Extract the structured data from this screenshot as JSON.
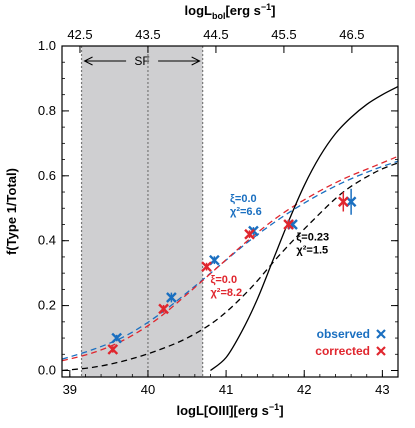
{
  "chart_data": {
    "type": "scatter",
    "xlabel": "logL[OIII][erg s⁻¹]",
    "ylabel": "f(Type 1/Total)",
    "top_xlabel": "logLₕₒₗ[erg s⁻¹]",
    "top_xlabel_parts": {
      "base": "logL",
      "sub": "bol",
      "rest": "[erg s",
      "sup": "−1",
      "end": "]"
    },
    "xlabel_parts": {
      "base": "logL[OIII][erg s",
      "sup": "−1",
      "end": "]"
    },
    "xlim": [
      38.9,
      43.2
    ],
    "ylim": [
      -0.02,
      1.0
    ],
    "x_ticks": [
      "39",
      "40",
      "41",
      "42",
      "43"
    ],
    "x_tick_values": [
      39,
      40,
      41,
      42,
      43
    ],
    "top_ticks": [
      "42.5",
      "43.5",
      "44.5",
      "45.5",
      "46.5"
    ],
    "top_tick_values": [
      39.13,
      40.0,
      40.87,
      41.74,
      42.61
    ],
    "y_ticks": [
      "0.0",
      "0.2",
      "0.4",
      "0.6",
      "0.8",
      "1.0"
    ],
    "y_tick_values": [
      0.0,
      0.2,
      0.4,
      0.6,
      0.8,
      1.0
    ],
    "shaded_region": {
      "label": "SF",
      "x": [
        39.15,
        40.7
      ],
      "divider_x": 40.0
    },
    "series": [
      {
        "name": "observed",
        "color": "#1a6fc0",
        "marker": "x",
        "x": [
          39.6,
          40.3,
          40.85,
          41.35,
          41.85,
          42.6
        ],
        "y": [
          0.1,
          0.225,
          0.34,
          0.43,
          0.45,
          0.52
        ],
        "yerr": [
          0.01,
          0.015,
          0.012,
          0.012,
          0.015,
          0.04
        ]
      },
      {
        "name": "corrected",
        "color": "#e0262e",
        "marker": "x",
        "x": [
          39.55,
          40.2,
          40.75,
          41.3,
          41.8,
          42.5
        ],
        "y": [
          0.065,
          0.19,
          0.32,
          0.42,
          0.45,
          0.52
        ],
        "yerr": [
          0.01,
          0.012,
          0.012,
          0.012,
          0.015,
          0.03
        ]
      }
    ],
    "fits": [
      {
        "color": "#1a6fc0",
        "style": "dashed",
        "x": [
          38.9,
          39.3,
          39.7,
          40.1,
          40.5,
          40.9,
          41.3,
          41.7,
          42.1,
          42.5,
          42.9,
          43.2
        ],
        "y": [
          0.035,
          0.065,
          0.105,
          0.165,
          0.24,
          0.32,
          0.4,
          0.47,
          0.53,
          0.58,
          0.62,
          0.645
        ]
      },
      {
        "color": "#e0262e",
        "style": "dashed",
        "x": [
          38.9,
          39.3,
          39.7,
          40.1,
          40.5,
          40.9,
          41.3,
          41.7,
          42.1,
          42.5,
          42.9,
          43.2
        ],
        "y": [
          0.03,
          0.055,
          0.095,
          0.155,
          0.235,
          0.32,
          0.405,
          0.48,
          0.54,
          0.59,
          0.63,
          0.66
        ]
      },
      {
        "color": "#000000",
        "style": "dashed",
        "x": [
          38.9,
          39.3,
          39.7,
          40.1,
          40.5,
          40.9,
          41.3,
          41.7,
          42.1,
          42.5,
          42.9,
          43.2
        ],
        "y": [
          0.0,
          0.01,
          0.03,
          0.06,
          0.1,
          0.16,
          0.25,
          0.36,
          0.46,
          0.55,
          0.61,
          0.64
        ]
      },
      {
        "color": "#000000",
        "style": "solid",
        "x": [
          40.8,
          41.0,
          41.2,
          41.4,
          41.6,
          41.8,
          42.0,
          42.2,
          42.4,
          42.6,
          42.8,
          43.0,
          43.2
        ],
        "y": [
          0.0,
          0.04,
          0.12,
          0.22,
          0.34,
          0.46,
          0.57,
          0.66,
          0.73,
          0.78,
          0.82,
          0.85,
          0.875
        ]
      }
    ],
    "annotations": [
      {
        "lines": [
          "ξ=0.0",
          "χ²=6.6"
        ],
        "color": "#1a6fc0",
        "x": 41.05,
        "y": 0.52
      },
      {
        "lines": [
          "ξ=0.0",
          "χ²=8.2"
        ],
        "color": "#e0262e",
        "x": 40.8,
        "y": 0.27
      },
      {
        "lines": [
          "ξ=0.23",
          "χ²=1.5"
        ],
        "color": "#000000",
        "x": 41.9,
        "y": 0.4
      }
    ],
    "legend": [
      {
        "label": "observed",
        "color": "#1a6fc0"
      },
      {
        "label": "corrected",
        "color": "#e0262e"
      }
    ],
    "legend_position": "bottom-right"
  }
}
